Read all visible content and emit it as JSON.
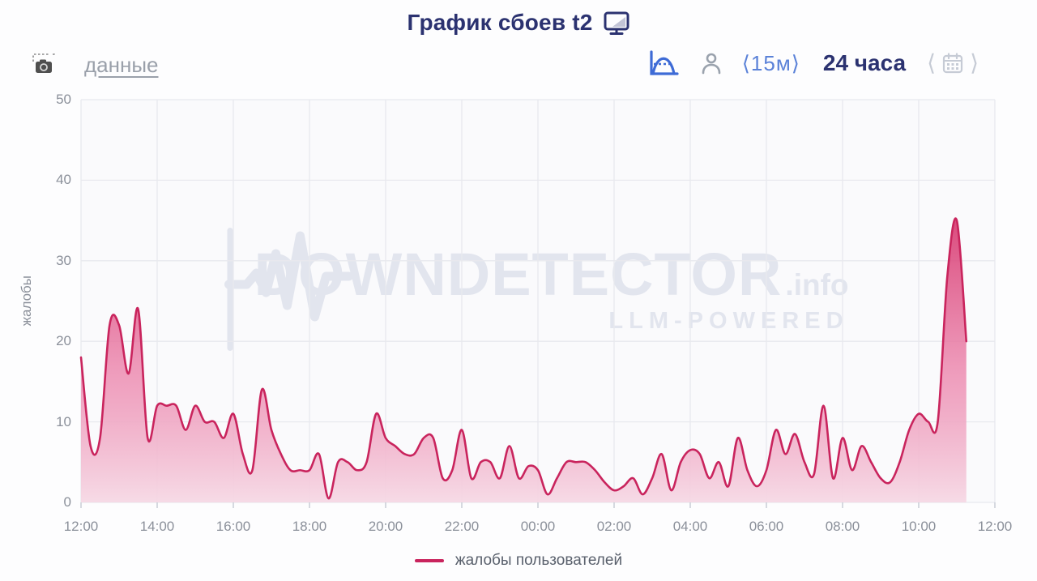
{
  "header": {
    "title": "График сбоев t2",
    "title_icon": "monitor-icon"
  },
  "toolbar": {
    "screenshot_icon": "camera-icon",
    "data_link": "данные",
    "chart_type_icon": "distribution-curve-icon",
    "user_icon": "person-icon",
    "interval": "⟨15м⟩",
    "range": "24 часа",
    "calendar_prev": "⟨",
    "calendar_icon": "calendar-icon",
    "calendar_next": "⟩"
  },
  "watermark": {
    "pulse_icon": "heartbeat-icon",
    "brand": "DOWNDETECTOR",
    "tld": ".info",
    "tagline": "LLM-POWERED"
  },
  "legend": {
    "label": "жалобы пользователей"
  },
  "colors": {
    "navy": "#2b3270",
    "blue": "#5b82d8",
    "icon_blue": "#3e6bd6",
    "gray_text": "#9aa0aa",
    "axis_text": "#8b909a",
    "legend_text": "#59606c",
    "light_gray": "#c6cbd5",
    "watermark": "#e2e5ee",
    "plot_bg": "#fafafc"
  },
  "chart_data": {
    "type": "area",
    "title": "График сбоев t2",
    "series_label": "жалобы пользователей",
    "ylabel": "жалобы",
    "xlabel": "",
    "ylim": [
      0,
      50
    ],
    "yticks": [
      0,
      10,
      20,
      30,
      40,
      50
    ],
    "xticks": [
      "12:00",
      "14:00",
      "16:00",
      "18:00",
      "20:00",
      "22:00",
      "00:00",
      "02:00",
      "04:00",
      "06:00",
      "08:00",
      "10:00",
      "12:00"
    ],
    "x_interval_minutes": 15,
    "grid": true,
    "legend_position": "bottom",
    "x": [
      "12:00",
      "12:15",
      "12:30",
      "12:45",
      "13:00",
      "13:15",
      "13:30",
      "13:45",
      "14:00",
      "14:15",
      "14:30",
      "14:45",
      "15:00",
      "15:15",
      "15:30",
      "15:45",
      "16:00",
      "16:15",
      "16:30",
      "16:45",
      "17:00",
      "17:15",
      "17:30",
      "17:45",
      "18:00",
      "18:15",
      "18:30",
      "18:45",
      "19:00",
      "19:15",
      "19:30",
      "19:45",
      "20:00",
      "20:15",
      "20:30",
      "20:45",
      "21:00",
      "21:15",
      "21:30",
      "21:45",
      "22:00",
      "22:15",
      "22:30",
      "22:45",
      "23:00",
      "23:15",
      "23:30",
      "23:45",
      "00:00",
      "00:15",
      "00:30",
      "00:45",
      "01:00",
      "01:15",
      "01:30",
      "01:45",
      "02:00",
      "02:15",
      "02:30",
      "02:45",
      "03:00",
      "03:15",
      "03:30",
      "03:45",
      "04:00",
      "04:15",
      "04:30",
      "04:45",
      "05:00",
      "05:15",
      "05:30",
      "05:45",
      "06:00",
      "06:15",
      "06:30",
      "06:45",
      "07:00",
      "07:15",
      "07:30",
      "07:45",
      "08:00",
      "08:15",
      "08:30",
      "08:45",
      "09:00",
      "09:15",
      "09:30",
      "09:45",
      "10:00",
      "10:15",
      "10:30",
      "10:45",
      "11:00",
      "11:15"
    ],
    "values": [
      18,
      7,
      8,
      22,
      22,
      16,
      24,
      8,
      12,
      12,
      12,
      9,
      12,
      10,
      10,
      8,
      11,
      6,
      4,
      14,
      9,
      6,
      4,
      4,
      4,
      6,
      0.5,
      5,
      5,
      4,
      5,
      11,
      8,
      7,
      6,
      6,
      8,
      8,
      3,
      4,
      9,
      3,
      5,
      5,
      3,
      7,
      3,
      4.5,
      4,
      1,
      3,
      5,
      5,
      5,
      4,
      2.5,
      1.5,
      2,
      3,
      1,
      3,
      6,
      1.5,
      5,
      6.5,
      6,
      3,
      5,
      2,
      8,
      4,
      2,
      4,
      9,
      6,
      8.5,
      5,
      3.5,
      12,
      3,
      8,
      4,
      7,
      5,
      3,
      2.5,
      5,
      9,
      11,
      10,
      10,
      28,
      35,
      20
    ],
    "colors": {
      "line": "#c9245d",
      "fill_top": "#d6336c",
      "fill_mid": "#ec86ad",
      "fill_bottom": "#f6d9e5",
      "grid": "#e8e9ee",
      "tick": "#c9cdd6"
    }
  }
}
